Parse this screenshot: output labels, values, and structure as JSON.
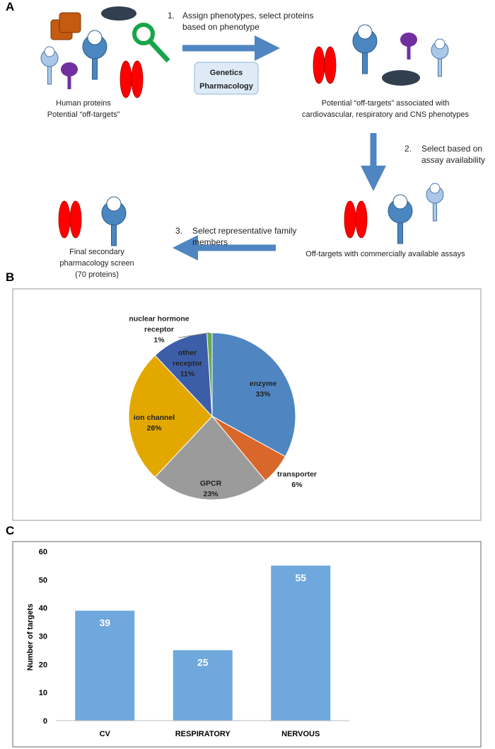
{
  "panels": [
    "A",
    "B",
    "C"
  ],
  "diagram": {
    "step1_num": "1.",
    "step1_text": "Assign phenotypes, select proteins based on phenotype",
    "box_line1": "Genetics",
    "box_line2": "Pharmacology",
    "human_line1": "Human proteins",
    "human_line2": "Potential “off-targets”",
    "potential_text": "Potential “off-targets” associated with cardiovascular, respiratory and CNS phenotypes",
    "step2_num": "2.",
    "step2_text": "Select based on assay availability",
    "assays_text": "Off-targets with commercially available assays",
    "step3_num": "3.",
    "step3_text": "Select representative family members",
    "final_text": "Final secondary pharmacology screen (70 proteins)"
  },
  "chart_data": [
    {
      "type": "pie",
      "categories": [
        "enzyme",
        "transporter",
        "GPCR",
        "ion channel",
        "other receptor",
        "nuclear hormone receptor"
      ],
      "values": [
        33,
        6,
        23,
        26,
        11,
        1
      ],
      "value_labels": [
        "33%",
        "6%",
        "23%",
        "26%",
        "11%",
        "1%"
      ],
      "colors": [
        "#4f86c1",
        "#d9672c",
        "#9b9b9b",
        "#e2a800",
        "#3c5ea9",
        "#6aa84f"
      ]
    },
    {
      "type": "bar",
      "categories": [
        "CV",
        "RESPIRATORY",
        "NERVOUS"
      ],
      "values": [
        39,
        25,
        55
      ],
      "color": "#6fa8dc",
      "ylabel": "Number of targets",
      "ylim": [
        0,
        60
      ],
      "yticks": [
        0,
        10,
        20,
        30,
        40,
        50,
        60
      ],
      "grid": false
    }
  ]
}
